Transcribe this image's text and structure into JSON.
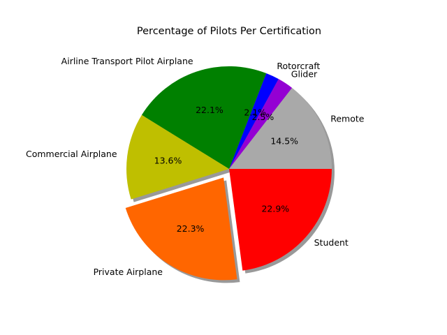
{
  "chart_data": {
    "type": "pie",
    "title": "Percentage of Pilots Per Certification",
    "start_angle_deg": 0,
    "direction": "counterclockwise",
    "shadow": true,
    "slices": [
      {
        "label": "Remote",
        "value": 14.5,
        "pct_text": "14.5%",
        "color": "#a9a9a9",
        "explode": 0
      },
      {
        "label": "Glider",
        "value": 2.5,
        "pct_text": "2.5%",
        "color": "#9400d3",
        "explode": 0
      },
      {
        "label": "Rotorcraft",
        "value": 2.1,
        "pct_text": "2.1%",
        "color": "#0000ff",
        "explode": 0
      },
      {
        "label": "Airline Transport Pilot Airplane",
        "value": 22.1,
        "pct_text": "22.1%",
        "color": "#008000",
        "explode": 0
      },
      {
        "label": "Commercial Airplane",
        "value": 13.6,
        "pct_text": "13.6%",
        "color": "#bfbf00",
        "explode": 0
      },
      {
        "label": "Private Airplane",
        "value": 22.3,
        "pct_text": "22.3%",
        "color": "#ff6600",
        "explode": 0.1
      },
      {
        "label": "Student",
        "value": 22.9,
        "pct_text": "22.9%",
        "color": "#ff0000",
        "explode": 0
      }
    ]
  }
}
